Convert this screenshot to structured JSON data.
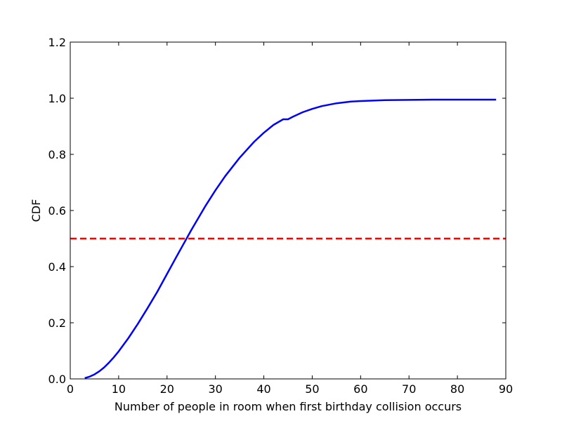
{
  "chart_data": {
    "type": "line",
    "title": "",
    "xlabel": "Number of people in room when first birthday collision occurs",
    "ylabel": "CDF",
    "xlim": [
      0,
      90
    ],
    "ylim": [
      0.0,
      1.2
    ],
    "xticks": [
      0,
      10,
      20,
      30,
      40,
      50,
      60,
      70,
      80,
      90
    ],
    "xtick_labels": [
      "0",
      "10",
      "20",
      "30",
      "40",
      "50",
      "60",
      "70",
      "80",
      "90"
    ],
    "yticks": [
      0.0,
      0.2,
      0.4,
      0.6,
      0.8,
      1.0,
      1.2
    ],
    "ytick_labels": [
      "0.0",
      "0.2",
      "0.4",
      "0.6",
      "0.8",
      "1.0",
      "1.2"
    ],
    "grid": false,
    "legend": "none",
    "series": [
      {
        "color": "#0000ff",
        "style": "solid",
        "x": [
          3,
          4,
          5,
          6,
          7,
          8,
          9,
          10,
          12,
          14,
          16,
          18,
          20,
          22,
          23,
          25,
          28,
          30,
          32,
          35,
          38,
          40,
          42,
          44,
          45,
          46,
          48,
          50,
          52,
          55,
          58,
          60,
          65,
          70,
          75,
          80,
          85,
          88
        ],
        "y": [
          0.003,
          0.008,
          0.016,
          0.027,
          0.041,
          0.058,
          0.077,
          0.098,
          0.145,
          0.197,
          0.253,
          0.311,
          0.374,
          0.437,
          0.468,
          0.53,
          0.618,
          0.672,
          0.722,
          0.788,
          0.845,
          0.877,
          0.905,
          0.925,
          0.925,
          0.934,
          0.95,
          0.962,
          0.972,
          0.982,
          0.988,
          0.99,
          0.993,
          0.994,
          0.995,
          0.995,
          0.995,
          0.995
        ]
      },
      {
        "color": "#ff0000",
        "style": "dashed",
        "x": [
          0,
          90
        ],
        "y": [
          0.5,
          0.5
        ]
      }
    ]
  }
}
